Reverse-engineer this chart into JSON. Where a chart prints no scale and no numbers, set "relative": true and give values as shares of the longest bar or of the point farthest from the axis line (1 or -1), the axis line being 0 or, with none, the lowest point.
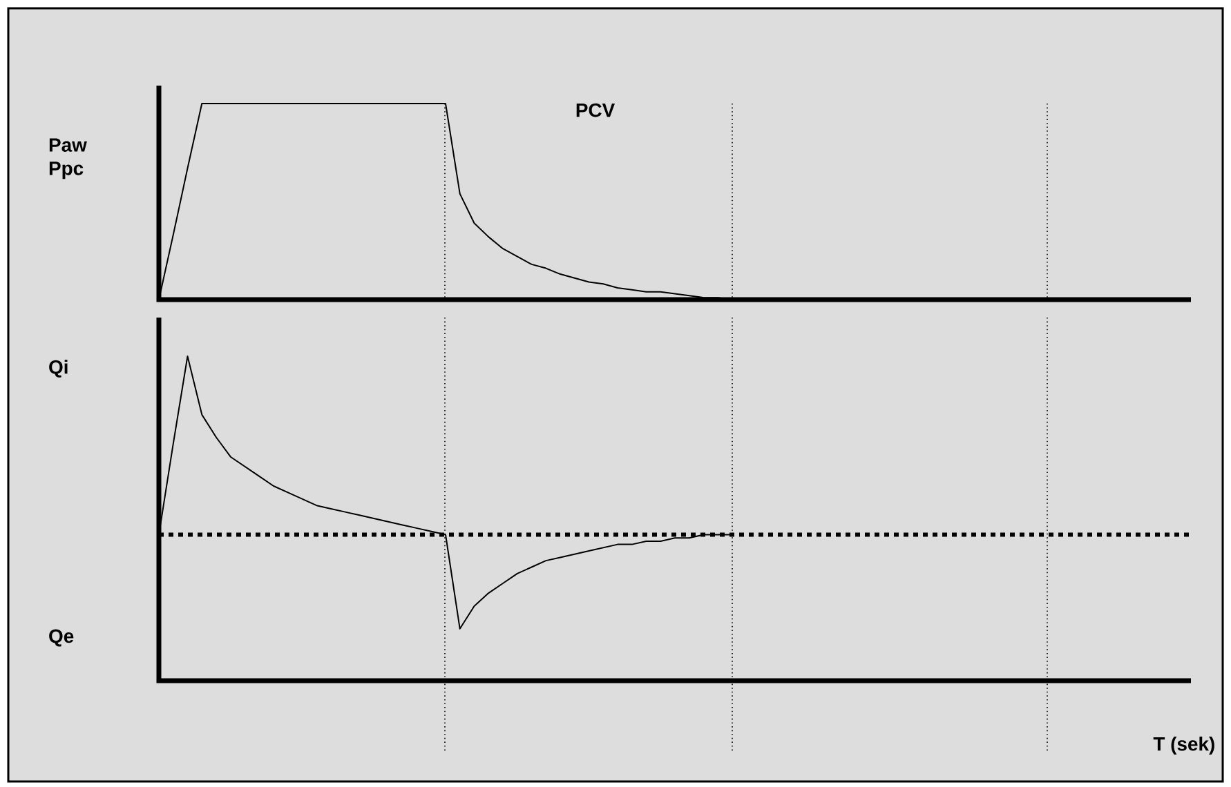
{
  "chart_data": [
    {
      "type": "line",
      "relative": true,
      "title": "PCV",
      "ylabel": "Paw Ppc",
      "categories": [
        null,
        null,
        null,
        null,
        null,
        null,
        null,
        null,
        null,
        null,
        null,
        null,
        null,
        null,
        null,
        null,
        null,
        null,
        null,
        null,
        null,
        null,
        null,
        null,
        null,
        null,
        null,
        null,
        null,
        null,
        null,
        null,
        null,
        null,
        null,
        null,
        null,
        null,
        null,
        null,
        null,
        null,
        null,
        null,
        null,
        null,
        null,
        null,
        null,
        null,
        null,
        null,
        null,
        null,
        null,
        null,
        null,
        null,
        null,
        null,
        null,
        null,
        null,
        null,
        null,
        null,
        null,
        null,
        null,
        null,
        null,
        null,
        null
      ],
      "series": [
        {
          "color": "#000000",
          "values": [
            0,
            0.33,
            0.67,
            1,
            1,
            1,
            1,
            1,
            1,
            1,
            1,
            1,
            1,
            1,
            1,
            1,
            1,
            1,
            1,
            1,
            1,
            0.54,
            0.39,
            0.32,
            0.26,
            0.22,
            0.18,
            0.16,
            0.13,
            0.11,
            0.09,
            0.08,
            0.06,
            0.05,
            0.04,
            0.04,
            0.03,
            0.02,
            0.01,
            0.01,
            0,
            null,
            null,
            null,
            null,
            null,
            null,
            null,
            null,
            null,
            null,
            null,
            null,
            null,
            null,
            null,
            null,
            null,
            null,
            null,
            null,
            null,
            null,
            null,
            null,
            null,
            null,
            null,
            null,
            null,
            null,
            null,
            null
          ]
        }
      ],
      "grid": "x"
    },
    {
      "type": "line",
      "relative": true,
      "grid": "x",
      "xlabel": "T (sek)",
      "annotations": [
        "Qi",
        "Qe"
      ],
      "categories": [
        null,
        null,
        null,
        null,
        null,
        null,
        null,
        null,
        null,
        null,
        null,
        null,
        null,
        null,
        null,
        null,
        null,
        null,
        null,
        null,
        null,
        null,
        null,
        null,
        null,
        null,
        null,
        null,
        null,
        null,
        null,
        null,
        null,
        null,
        null,
        null,
        null,
        null,
        null,
        null,
        null,
        null,
        null,
        null,
        null,
        null,
        null,
        null,
        null,
        null,
        null,
        null,
        null,
        null,
        null,
        null,
        null,
        null,
        null,
        null,
        null,
        null,
        null,
        null,
        null,
        null,
        null,
        null,
        null,
        null,
        null,
        null,
        null
      ],
      "series": [
        {
          "color": "#000000",
          "values": [
            0.45,
            0.73,
            1,
            0.82,
            0.75,
            0.69,
            0.66,
            0.63,
            0.6,
            0.58,
            0.56,
            0.54,
            0.53,
            0.52,
            0.51,
            0.5,
            0.49,
            0.48,
            0.47,
            0.46,
            0.45,
            0.16,
            0.23,
            0.27,
            0.3,
            0.33,
            0.35,
            0.37,
            0.38,
            0.39,
            0.4,
            0.41,
            0.42,
            0.42,
            0.43,
            0.43,
            0.44,
            0.44,
            0.45,
            0.45,
            0.45,
            null,
            null,
            null,
            null,
            null,
            null,
            null,
            null,
            null,
            null,
            null,
            null,
            null,
            null,
            null,
            null,
            null,
            null,
            null,
            null,
            null,
            null,
            null,
            null,
            null,
            null,
            null,
            null,
            null,
            null,
            null,
            null
          ]
        }
      ],
      "ref_lines": [
        {
          "axis": "y",
          "value": 0.45,
          "line_style": "dotted",
          "color": "#000000"
        }
      ]
    }
  ]
}
